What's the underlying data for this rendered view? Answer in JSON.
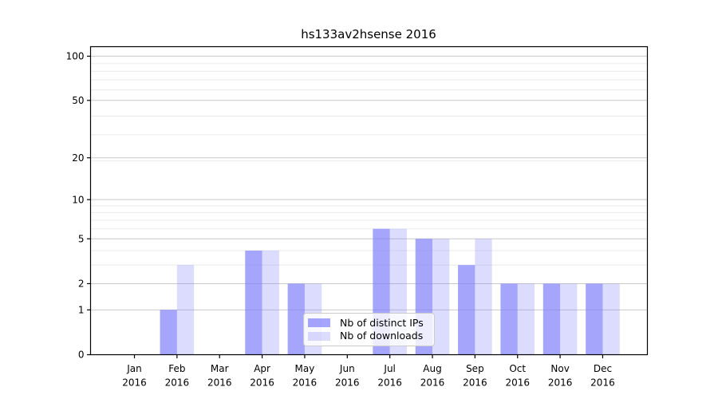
{
  "chart_data": {
    "type": "bar",
    "title": "hs133av2hsense 2016",
    "categories": [
      "Jan",
      "Feb",
      "Mar",
      "Apr",
      "May",
      "Jun",
      "Jul",
      "Aug",
      "Sep",
      "Oct",
      "Nov",
      "Dec"
    ],
    "x_tick_labels": [
      {
        "line1": "Jan",
        "line2": "2016"
      },
      {
        "line1": "Feb",
        "line2": "2016"
      },
      {
        "line1": "Mar",
        "line2": "2016"
      },
      {
        "line1": "Apr",
        "line2": "2016"
      },
      {
        "line1": "May",
        "line2": "2016"
      },
      {
        "line1": "Jun",
        "line2": "2016"
      },
      {
        "line1": "Jul",
        "line2": "2016"
      },
      {
        "line1": "Aug",
        "line2": "2016"
      },
      {
        "line1": "Sep",
        "line2": "2016"
      },
      {
        "line1": "Oct",
        "line2": "2016"
      },
      {
        "line1": "Nov",
        "line2": "2016"
      },
      {
        "line1": "Dec",
        "line2": "2016"
      }
    ],
    "series": [
      {
        "name": "Nb of distinct IPs",
        "slug": "distinct-ips",
        "color": "rgba(128,128,250,0.71)",
        "values": [
          0,
          1,
          0,
          4,
          2,
          0,
          6,
          5,
          3,
          2,
          2,
          2
        ]
      },
      {
        "name": "Nb of downloads",
        "slug": "downloads",
        "color": "rgba(128,128,250,0.28)",
        "values": [
          0,
          3,
          0,
          4,
          2,
          0,
          6,
          5,
          5,
          2,
          2,
          2
        ]
      }
    ],
    "yscale": "log1p",
    "ylim": [
      0,
      116
    ],
    "y_major_ticks": [
      0,
      1,
      2,
      5,
      10,
      20,
      50,
      100
    ],
    "y_minor_gridlines": [
      3,
      4,
      6,
      7,
      8,
      9,
      19,
      29,
      39,
      59,
      69,
      79,
      89
    ],
    "grid": true,
    "legend_position": "lower center",
    "colors": {
      "axis": "#000000",
      "text": "#000000",
      "grid_major": "#c9c9c9",
      "grid_minor": "#e9e9e9",
      "background": "#ffffff",
      "legend_border": "#cccccc",
      "legend_background": "rgba(255,255,255,0.8)"
    }
  }
}
